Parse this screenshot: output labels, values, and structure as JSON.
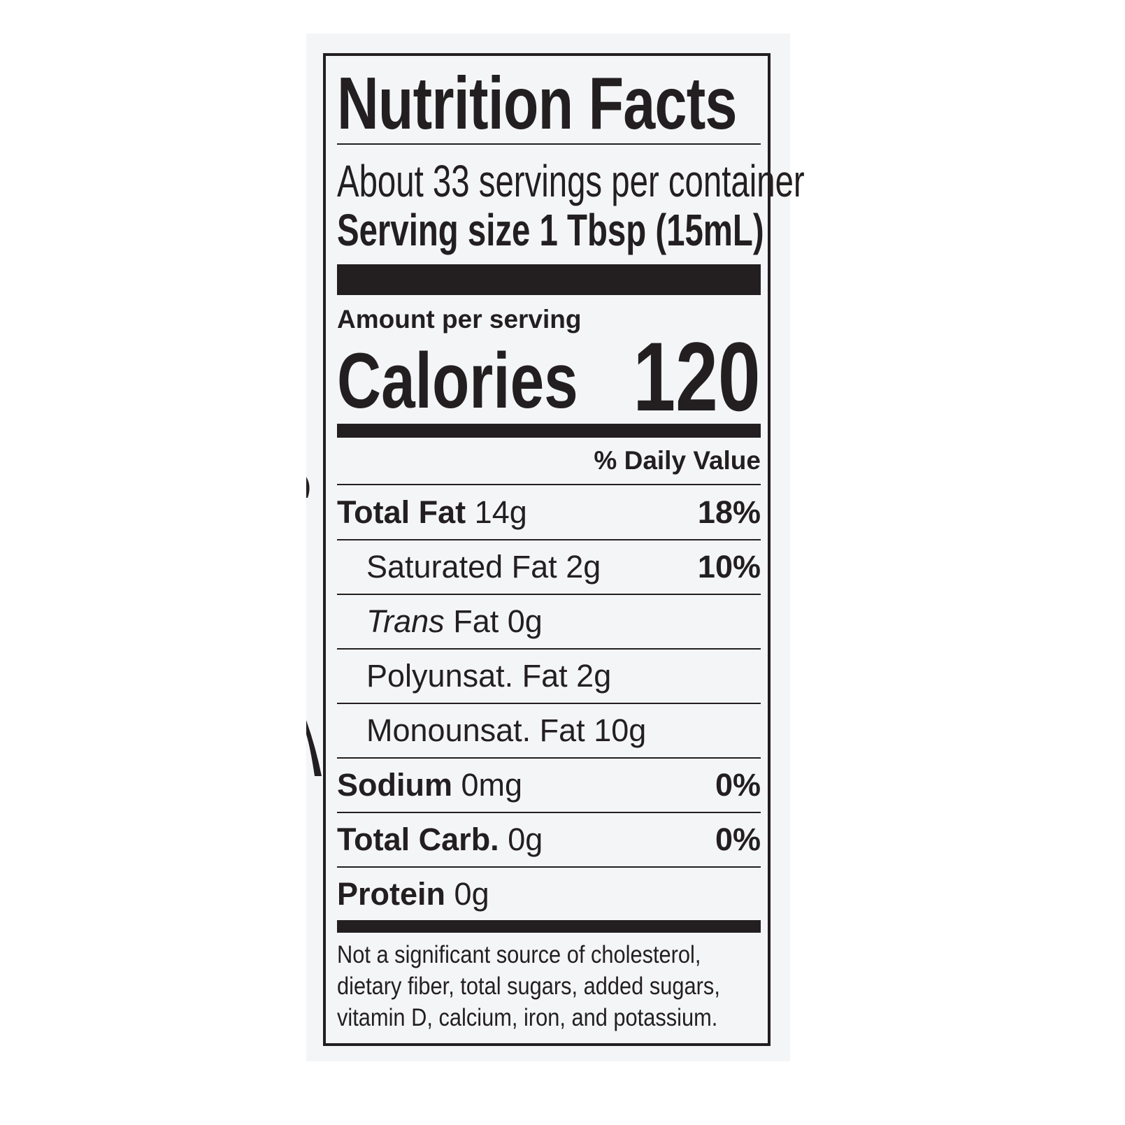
{
  "label": {
    "title": "Nutrition Facts",
    "servings_per_container": "About 33 servings per container",
    "serving_size": "Serving size 1 Tbsp (15mL)",
    "amount_per_serving": "Amount per serving",
    "calories_label": "Calories",
    "calories_value": "120",
    "daily_value_header": "% Daily Value",
    "rows": [
      {
        "label": "Total Fat",
        "amount": "14g",
        "dv": "18%"
      },
      {
        "label": "Saturated Fat",
        "amount": "2g",
        "dv": "10%"
      },
      {
        "label": "Trans",
        "label2": "Fat",
        "amount": "0g",
        "dv": ""
      },
      {
        "label": "Polyunsat. Fat",
        "amount": "2g",
        "dv": ""
      },
      {
        "label": "Monounsat. Fat",
        "amount": "10g",
        "dv": ""
      },
      {
        "label": "Sodium",
        "amount": "0mg",
        "dv": "0%"
      },
      {
        "label": "Total Carb.",
        "amount": "0g",
        "dv": "0%"
      },
      {
        "label": "Protein",
        "amount": "0g",
        "dv": ""
      }
    ],
    "footnote": [
      "Not a significant source of cholesterol,",
      "dietary fiber, total sugars, added sugars,",
      "vitamin D, calcium, iron, and potassium."
    ]
  }
}
